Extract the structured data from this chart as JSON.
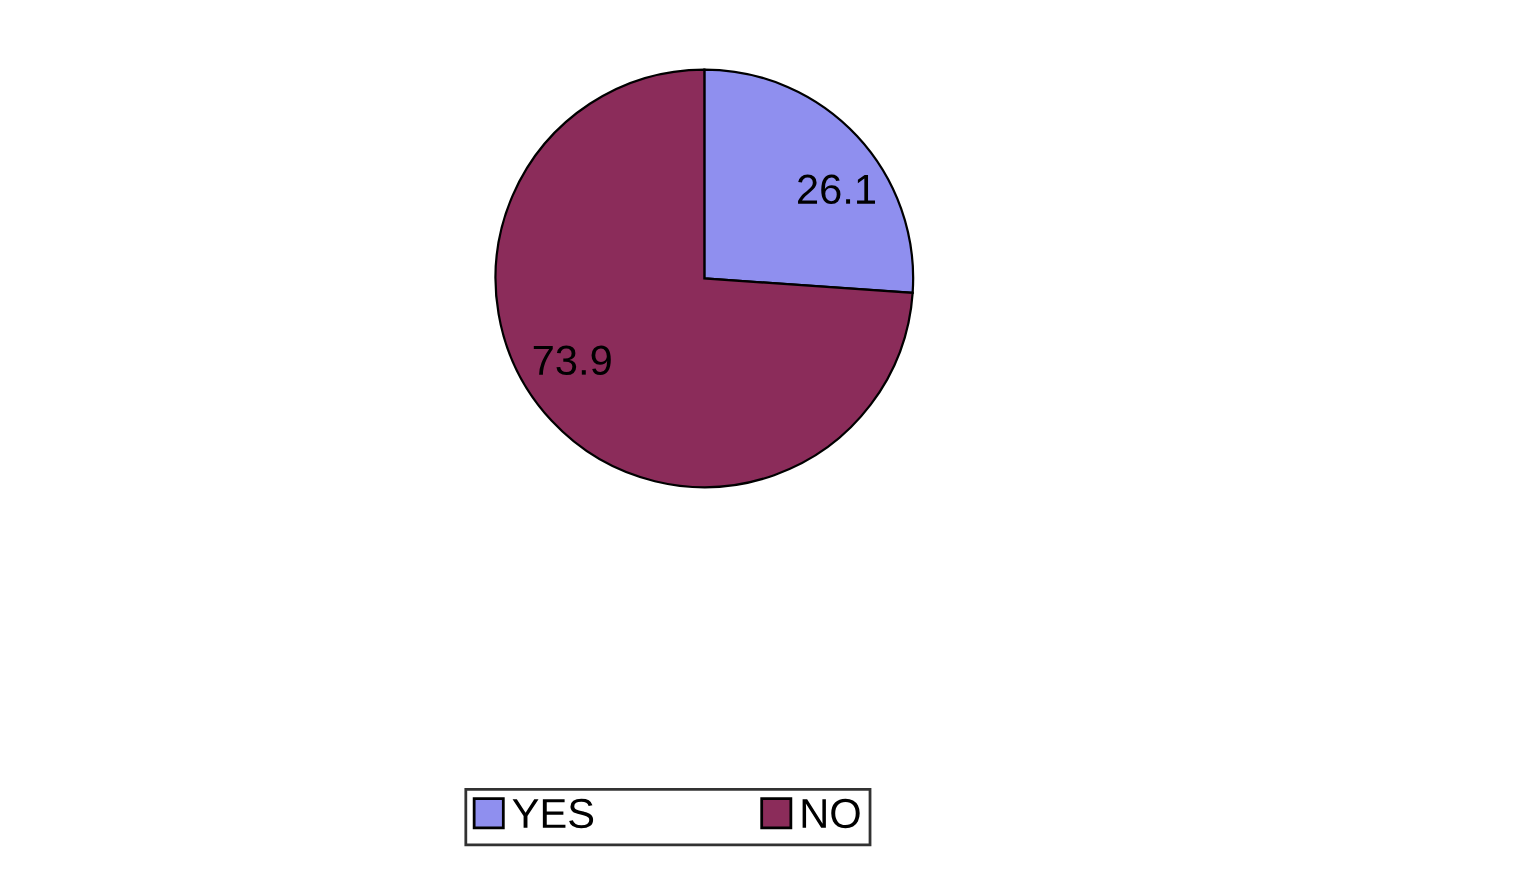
{
  "chart_data": {
    "type": "pie",
    "categories": [
      "YES",
      "NO"
    ],
    "values": [
      26.1,
      73.9
    ],
    "colors": [
      "#8f8fef",
      "#8b2c5a"
    ],
    "data_labels": true,
    "legend": "bottom"
  }
}
